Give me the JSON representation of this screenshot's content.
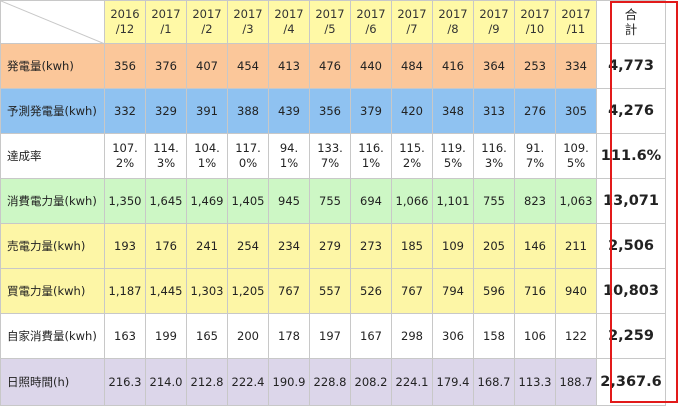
{
  "header": {
    "months": [
      [
        "2016",
        "/12"
      ],
      [
        "2017",
        "/1"
      ],
      [
        "2017",
        "/2"
      ],
      [
        "2017",
        "/3"
      ],
      [
        "2017",
        "/4"
      ],
      [
        "2017",
        "/5"
      ],
      [
        "2017",
        "/6"
      ],
      [
        "2017",
        "/7"
      ],
      [
        "2017",
        "/8"
      ],
      [
        "2017",
        "/9"
      ],
      [
        "2017",
        "/10"
      ],
      [
        "2017",
        "/11"
      ]
    ],
    "total_label": "合 計"
  },
  "rows": [
    {
      "label": "発電量(kwh)",
      "theme": "orange",
      "values": [
        "356",
        "376",
        "407",
        "454",
        "413",
        "476",
        "440",
        "484",
        "416",
        "364",
        "253",
        "334"
      ],
      "total": "4,773"
    },
    {
      "label": "予測発電量(kwh)",
      "theme": "blue",
      "values": [
        "332",
        "329",
        "391",
        "388",
        "439",
        "356",
        "379",
        "420",
        "348",
        "313",
        "276",
        "305"
      ],
      "total": "4,276"
    },
    {
      "label": "達成率",
      "theme": "white",
      "values": [
        [
          "107.",
          "2%"
        ],
        [
          "114.",
          "3%"
        ],
        [
          "104.",
          "1%"
        ],
        [
          "117.",
          "0%"
        ],
        [
          "94.",
          "1%"
        ],
        [
          "133.",
          "7%"
        ],
        [
          "116.",
          "1%"
        ],
        [
          "115.",
          "2%"
        ],
        [
          "119.",
          "5%"
        ],
        [
          "116.",
          "3%"
        ],
        [
          "91.",
          "7%"
        ],
        [
          "109.",
          "5%"
        ]
      ],
      "total": "111.6%"
    },
    {
      "label": "消費電力量(kwh)",
      "theme": "green",
      "values": [
        "1,350",
        "1,645",
        "1,469",
        "1,405",
        "945",
        "755",
        "694",
        "1,066",
        "1,101",
        "755",
        "823",
        "1,063"
      ],
      "total": "13,071"
    },
    {
      "label": "売電力量(kwh)",
      "theme": "yellow",
      "values": [
        "193",
        "176",
        "241",
        "254",
        "234",
        "279",
        "273",
        "185",
        "109",
        "205",
        "146",
        "211"
      ],
      "total": "2,506"
    },
    {
      "label": "買電力量(kwh)",
      "theme": "yellow",
      "values": [
        "1,187",
        "1,445",
        "1,303",
        "1,205",
        "767",
        "557",
        "526",
        "767",
        "794",
        "596",
        "716",
        "940"
      ],
      "total": "10,803"
    },
    {
      "label": "自家消費量(kwh)",
      "theme": "white",
      "values": [
        "163",
        "199",
        "165",
        "200",
        "178",
        "197",
        "167",
        "298",
        "306",
        "158",
        "106",
        "122"
      ],
      "total": "2,259"
    },
    {
      "label": "日照時間(h)",
      "theme": "purple",
      "values": [
        "216.3",
        "214.0",
        "212.8",
        "222.4",
        "190.9",
        "228.8",
        "208.2",
        "224.1",
        "179.4",
        "168.7",
        "113.3",
        "188.7"
      ],
      "total": "2,367.6"
    }
  ],
  "colors": {
    "frame": "#e21a1a",
    "orange": "#fbc79a",
    "blue": "#8fc2f1",
    "green": "#cdf7c5",
    "yellow": "#fdf6a6",
    "purple": "#dcd6ea",
    "header": "#fff9a6"
  }
}
